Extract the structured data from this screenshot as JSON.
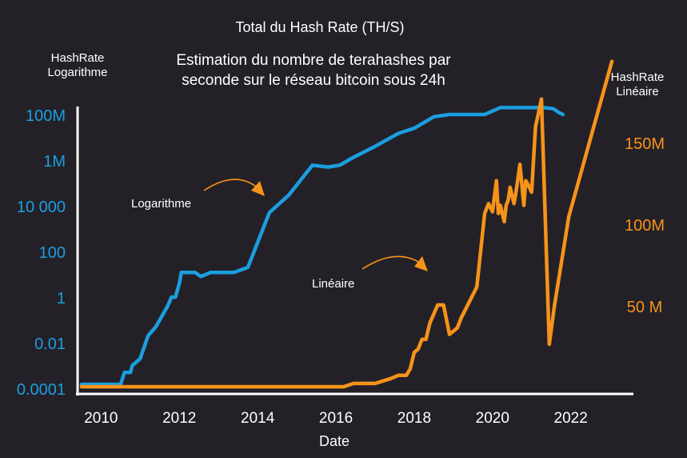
{
  "chart_data": {
    "type": "line",
    "title": "Total du Hash Rate (TH/S)",
    "subtitle_lines": [
      "Estimation du nombre de terahashes par",
      "seconde sur le réseau bitcoin sous 24h"
    ],
    "xlabel": "Date",
    "x_ticks": [
      2010,
      2012,
      2014,
      2016,
      2018,
      2020,
      2022
    ],
    "xlim": [
      2009.4,
      2023.6
    ],
    "left_axis": {
      "label_lines": [
        "HashRate",
        "Logarithme"
      ],
      "scale": "log",
      "color": "#1b9ee0",
      "ticks": [
        {
          "value": 0.0001,
          "label": "0.0001"
        },
        {
          "value": 0.01,
          "label": "0.01"
        },
        {
          "value": 1,
          "label": "1"
        },
        {
          "value": 100,
          "label": "100"
        },
        {
          "value": 10000,
          "label": "10 000"
        },
        {
          "value": 1000000,
          "label": "1M"
        },
        {
          "value": 100000000,
          "label": "100M"
        }
      ]
    },
    "right_axis": {
      "label_lines": [
        "HashRate",
        "Linéaire"
      ],
      "scale": "linear",
      "color": "#f7931a",
      "ylim": [
        0,
        193
      ],
      "ticks": [
        {
          "value": 50,
          "label": "50 M"
        },
        {
          "value": 100,
          "label": "100M"
        },
        {
          "value": 150,
          "label": "150M"
        }
      ]
    },
    "series": [
      {
        "name": "Logarithme",
        "axis": "left",
        "color": "#1b9ee0",
        "x": [
          2009.5,
          2010.5,
          2010.6,
          2010.75,
          2010.8,
          2011.0,
          2011.2,
          2011.4,
          2011.7,
          2011.8,
          2011.9,
          2012.0,
          2012.05,
          2012.4,
          2012.55,
          2012.8,
          2013.4,
          2013.75,
          2014.3,
          2014.8,
          2015.4,
          2015.8,
          2016.1,
          2016.4,
          2017.0,
          2017.6,
          2018.0,
          2018.5,
          2018.9,
          2019.3,
          2019.8,
          2020.2,
          2020.6,
          2021.3,
          2021.55,
          2021.7,
          2021.8
        ],
        "y": [
          0.00015,
          0.00015,
          0.0005,
          0.0005,
          0.001,
          0.002,
          0.02,
          0.05,
          0.4,
          1,
          1,
          4,
          12,
          12,
          8,
          12,
          12,
          20,
          5000,
          30000,
          600000,
          500000,
          600000,
          1200000,
          4000000,
          15000000,
          25000000,
          80000000,
          100000000,
          100000000,
          100000000,
          200000000,
          200000000,
          200000000,
          180000000,
          120000000,
          100000000
        ]
      },
      {
        "name": "Linéaire",
        "axis": "right",
        "color": "#f7931a",
        "x": [
          2009.5,
          2016.0,
          2016.2,
          2016.45,
          2017.0,
          2017.4,
          2017.6,
          2017.8,
          2017.9,
          2018.0,
          2018.1,
          2018.2,
          2018.3,
          2018.4,
          2018.6,
          2018.75,
          2018.9,
          2019.1,
          2019.2,
          2019.6,
          2019.8,
          2019.9,
          2020.0,
          2020.1,
          2020.15,
          2020.2,
          2020.3,
          2020.35,
          2020.4,
          2020.45,
          2020.55,
          2020.6,
          2020.7,
          2020.8,
          2020.85,
          2020.9,
          2021.0,
          2021.1,
          2021.25,
          2021.45,
          2021.58,
          2021.95,
          2023.05
        ],
        "y": [
          1,
          1,
          1,
          3,
          3,
          6,
          8,
          8,
          12,
          22,
          24,
          30,
          30,
          40,
          51,
          51,
          33,
          37,
          43,
          62,
          107,
          113,
          108,
          127,
          107,
          112,
          102,
          112,
          115,
          123,
          113,
          120,
          137,
          112,
          127,
          125,
          120,
          160,
          177,
          27,
          50,
          105,
          200
        ]
      }
    ],
    "annotations": [
      {
        "text": "Logarithme",
        "color": "#ffffff"
      },
      {
        "text": "Linéaire",
        "color": "#ffffff"
      }
    ],
    "grid": false,
    "background": "#232127"
  }
}
